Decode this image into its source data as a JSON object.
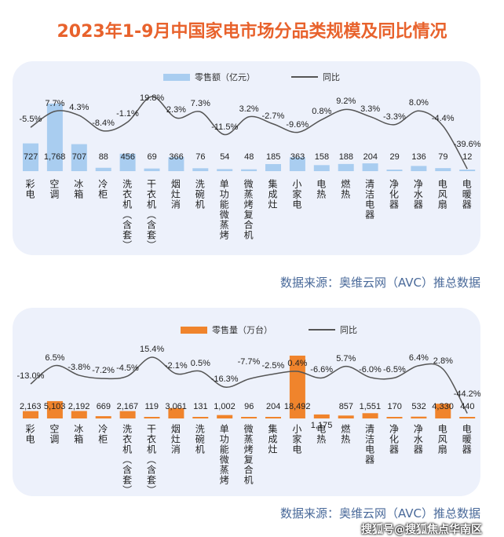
{
  "title": "2023年1-9月中国家电市场分品类规模及同比情况",
  "watermark": "搜狐号@搜狐焦点华南区",
  "chart_data": [
    {
      "type": "bar",
      "legend": [
        "零售额（亿元）",
        "同比"
      ],
      "bar_color": "#a9cdf0",
      "categories": [
        "彩电",
        "空调",
        "冰箱",
        "冷柜",
        "洗衣机（含套）",
        "干衣机（含套）",
        "烟灶消",
        "洗碗机",
        "单功能微蒸烤",
        "微蒸烤复合机",
        "集成灶",
        "小家电",
        "电热",
        "燃热",
        "清洁电器",
        "净化器",
        "净水器",
        "电风扇",
        "电暖器"
      ],
      "values": [
        727,
        1768,
        707,
        88,
        456,
        69,
        366,
        76,
        54,
        48,
        185,
        363,
        158,
        188,
        204,
        29,
        136,
        79,
        12
      ],
      "value_labels": [
        "727",
        "1,768",
        "707",
        "88",
        "456",
        "69",
        "366",
        "76",
        "54",
        "48",
        "185",
        "363",
        "158",
        "188",
        "204",
        "29",
        "136",
        "79",
        "12"
      ],
      "yoy": [
        -5.5,
        7.7,
        4.3,
        -8.4,
        -1.1,
        19.8,
        2.3,
        7.3,
        -11.5,
        3.2,
        -2.7,
        -9.6,
        0.8,
        9.2,
        3.3,
        -3.3,
        8.0,
        -4.4,
        -39.6
      ],
      "yoy_labels": [
        "-5.5%",
        "7.7%",
        "4.3%",
        "-8.4%",
        "-1.1%",
        "19.8%",
        "2.3%",
        "7.3%",
        "-11.5%",
        "3.2%",
        "-2.7%",
        "-9.6%",
        "0.8%",
        "9.2%",
        "3.3%",
        "-3.3%",
        "8.0%",
        "-4.4%",
        "-39.6%"
      ],
      "source": "数据来源：奥维云网（AVC）推总数据"
    },
    {
      "type": "bar",
      "legend": [
        "零售量（万台）",
        "同比"
      ],
      "bar_color": "#f0842c",
      "categories": [
        "彩电",
        "空调",
        "冰箱",
        "冷柜",
        "洗衣机（含套）",
        "干衣机（含套）",
        "烟灶消",
        "洗碗机",
        "单功能微蒸烤",
        "微蒸烤复合机",
        "集成灶",
        "小家电",
        "电热",
        "燃热",
        "清洁电器",
        "净化器",
        "净水器",
        "电风扇",
        "电暖器"
      ],
      "values": [
        2163,
        5103,
        2192,
        669,
        2167,
        119,
        3061,
        131,
        1002,
        96,
        204,
        18492,
        1175,
        857,
        1551,
        170,
        532,
        4330,
        440
      ],
      "value_labels": [
        "2,163",
        "5,103",
        "2,192",
        "669",
        "2,167",
        "119",
        "3,061",
        "131",
        "1,002",
        "96",
        "204",
        "18,492",
        "1,175",
        "857",
        "1,551",
        "170",
        "532",
        "4,330",
        "440"
      ],
      "yoy": [
        -13.0,
        6.5,
        -3.8,
        -7.2,
        -4.5,
        15.4,
        -2.1,
        0.5,
        -16.3,
        -7.7,
        -2.5,
        0.4,
        -6.6,
        5.7,
        -6.0,
        -6.5,
        6.4,
        2.8,
        -44.2
      ],
      "yoy_labels": [
        "-13.0%",
        "6.5%",
        "-3.8%",
        "-7.2%",
        "-4.5%",
        "15.4%",
        "-2.1%",
        "0.5%",
        "-16.3%",
        "-7.7%",
        "-2.5%",
        "0.4%",
        "-6.6%",
        "5.7%",
        "-6.0%",
        "-6.5%",
        "6.4%",
        "2.8%",
        "-44.2%"
      ],
      "source": "数据来源：奥维云网（AVC）推总数据"
    }
  ]
}
